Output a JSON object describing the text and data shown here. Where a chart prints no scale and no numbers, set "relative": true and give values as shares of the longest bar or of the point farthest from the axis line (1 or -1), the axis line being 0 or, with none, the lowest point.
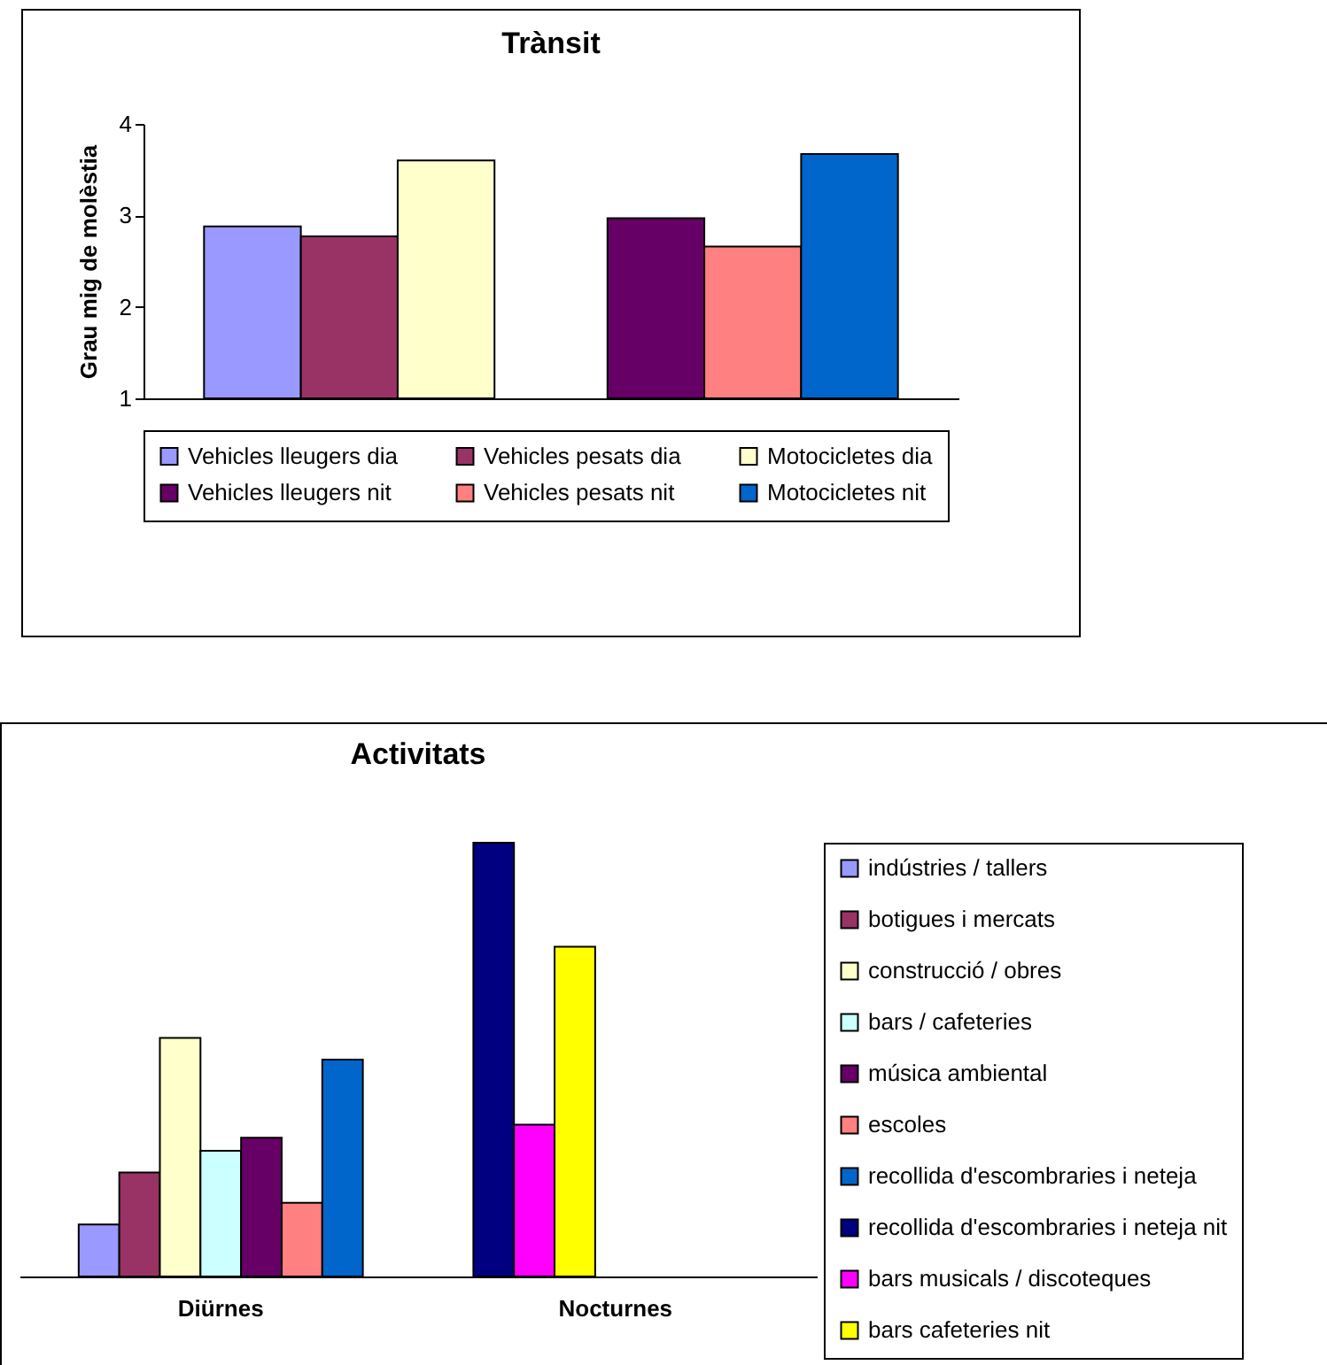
{
  "chart_data": [
    {
      "type": "bar",
      "title": "Trànsit",
      "ylabel": "Grau mig de molèstia",
      "categories": [
        null,
        null
      ],
      "ylim": [
        1,
        4
      ],
      "yticks": [
        1,
        2,
        3,
        4
      ],
      "grid": false,
      "legend": "bottom",
      "tick_labels": "y",
      "series": [
        {
          "name": "Vehicles lleugers dia",
          "color": "#9999ff",
          "values": [
            2.88,
            null
          ]
        },
        {
          "name": "Vehicles pesats dia",
          "color": "#993366",
          "values": [
            2.77,
            null
          ]
        },
        {
          "name": "Motocicletes dia",
          "color": "#ffffcc",
          "values": [
            3.6,
            null
          ]
        },
        {
          "name": "Vehicles lleugers nit",
          "color": "#660066",
          "values": [
            null,
            2.97
          ]
        },
        {
          "name": "Vehicles pesats nit",
          "color": "#ff8080",
          "values": [
            null,
            2.66
          ]
        },
        {
          "name": "Motocicletes nit",
          "color": "#0066cc",
          "values": [
            null,
            3.67
          ]
        }
      ]
    },
    {
      "type": "bar",
      "title": "Activitats",
      "categories": [
        "Diürnes",
        "Nocturnes"
      ],
      "relative": true,
      "grid": false,
      "legend": "right",
      "series": [
        {
          "name": "indústries / tallers",
          "color": "#9999ff",
          "values": [
            0.12,
            null
          ]
        },
        {
          "name": "botigues i mercats",
          "color": "#993366",
          "values": [
            0.24,
            null
          ]
        },
        {
          "name": "construcció / obres",
          "color": "#ffffcc",
          "values": [
            0.55,
            null
          ]
        },
        {
          "name": "bars / cafeteries",
          "color": "#ccffff",
          "values": [
            0.29,
            null
          ]
        },
        {
          "name": "música ambiental",
          "color": "#660066",
          "values": [
            0.32,
            null
          ]
        },
        {
          "name": "escoles",
          "color": "#ff8080",
          "values": [
            0.17,
            null
          ]
        },
        {
          "name": "recollida d'escombraries i neteja",
          "color": "#0066cc",
          "values": [
            0.5,
            null
          ]
        },
        {
          "name": "recollida d'escombraries i neteja nit",
          "color": "#000080",
          "values": [
            null,
            1
          ]
        },
        {
          "name": "bars musicals / discoteques",
          "color": "#ff00ff",
          "values": [
            null,
            0.35
          ]
        },
        {
          "name": "bars cafeteries nit",
          "color": "#ffff00",
          "values": [
            null,
            0.76
          ]
        }
      ]
    }
  ]
}
